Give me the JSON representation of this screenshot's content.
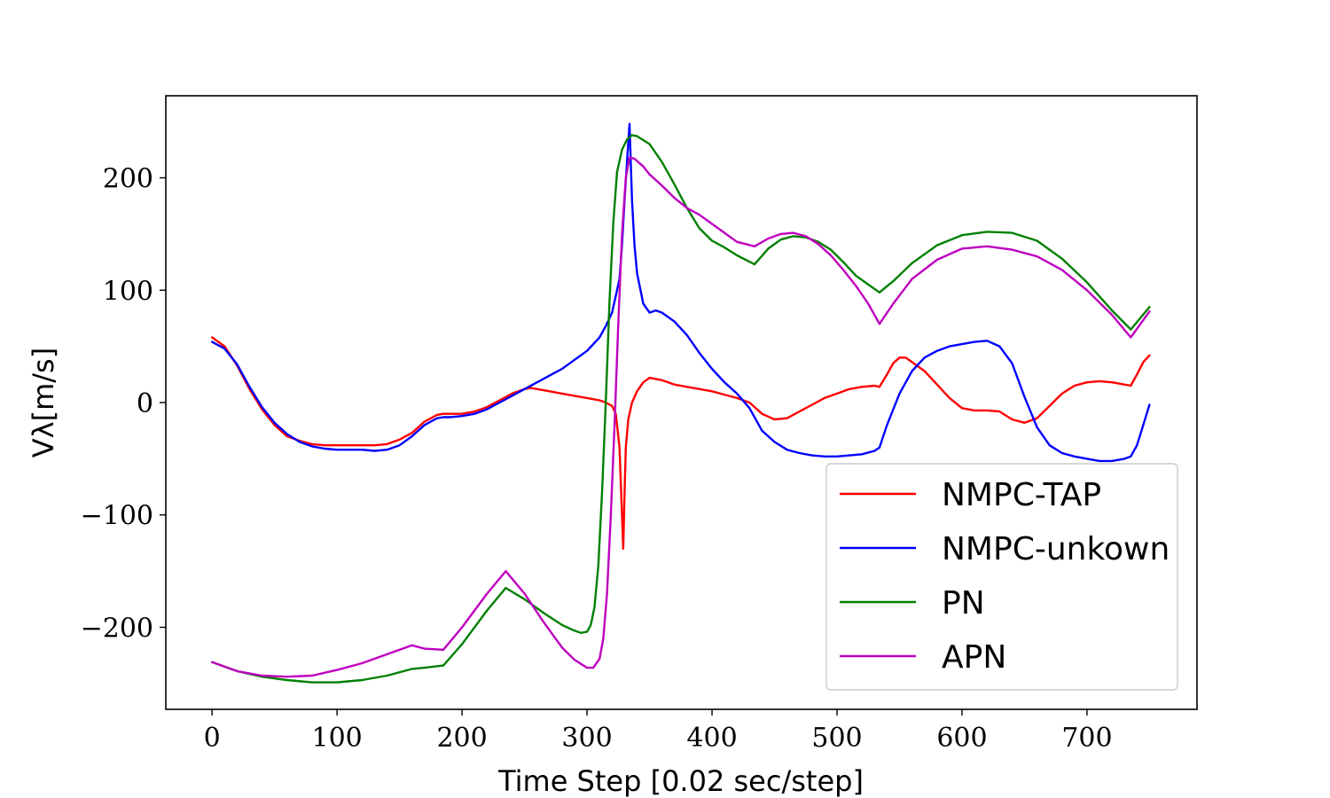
{
  "chart_data": {
    "type": "line",
    "xlabel": "Time Step [0.02 sec/step]",
    "ylabel": "Vλ[m/s]",
    "xlim": [
      -37,
      788
    ],
    "ylim": [
      -273,
      273
    ],
    "xticks": [
      0,
      100,
      200,
      300,
      400,
      500,
      600,
      700
    ],
    "yticks": [
      -200,
      -100,
      0,
      100,
      200
    ],
    "ytick_labels": [
      "−200",
      "−100",
      "0",
      "100",
      "200"
    ],
    "grid": false,
    "legend_position": "lower-right",
    "series": [
      {
        "name": "NMPC-TAP",
        "color": "#ff0000",
        "x": [
          0,
          10,
          20,
          30,
          40,
          50,
          60,
          70,
          80,
          90,
          100,
          110,
          120,
          130,
          140,
          150,
          160,
          170,
          180,
          185,
          190,
          200,
          210,
          220,
          230,
          240,
          250,
          255,
          260,
          270,
          280,
          290,
          300,
          310,
          315,
          320,
          323,
          326,
          328,
          329,
          330,
          331,
          333,
          336,
          340,
          345,
          350,
          355,
          360,
          370,
          380,
          390,
          400,
          410,
          420,
          430,
          440,
          450,
          460,
          470,
          480,
          490,
          500,
          510,
          520,
          530,
          534,
          540,
          545,
          550,
          555,
          560,
          570,
          580,
          590,
          600,
          610,
          620,
          630,
          640,
          650,
          660,
          670,
          680,
          690,
          700,
          710,
          720,
          730,
          735,
          740,
          745,
          750
        ],
        "y": [
          58,
          50,
          33,
          12,
          -6,
          -20,
          -30,
          -34,
          -37,
          -38,
          -38,
          -38,
          -38,
          -38,
          -37,
          -33,
          -27,
          -17,
          -11,
          -10,
          -10,
          -10,
          -8,
          -4,
          2,
          8,
          12,
          13,
          12,
          10,
          8,
          6,
          4,
          2,
          0,
          -3,
          -10,
          -40,
          -100,
          -130,
          -80,
          -40,
          -15,
          0,
          10,
          18,
          22,
          21,
          20,
          16,
          14,
          12,
          10,
          7,
          4,
          0,
          -10,
          -15,
          -14,
          -8,
          -2,
          4,
          8,
          12,
          14,
          15,
          14,
          25,
          35,
          40,
          40,
          36,
          28,
          16,
          4,
          -5,
          -7,
          -7,
          -8,
          -15,
          -18,
          -14,
          -3,
          8,
          15,
          18,
          19,
          18,
          16,
          15,
          25,
          36,
          42
        ]
      },
      {
        "name": "NMPC-unkown",
        "color": "#0000ff",
        "x": [
          0,
          10,
          20,
          30,
          40,
          50,
          60,
          70,
          80,
          90,
          100,
          110,
          120,
          130,
          140,
          150,
          160,
          170,
          180,
          185,
          190,
          200,
          210,
          220,
          230,
          240,
          250,
          260,
          270,
          280,
          290,
          300,
          310,
          315,
          320,
          323,
          326,
          328,
          330,
          332,
          334,
          336,
          338,
          340,
          345,
          350,
          355,
          360,
          370,
          380,
          390,
          400,
          410,
          420,
          430,
          440,
          450,
          460,
          470,
          480,
          490,
          500,
          510,
          520,
          530,
          534,
          540,
          550,
          560,
          570,
          580,
          590,
          600,
          610,
          620,
          630,
          640,
          650,
          660,
          670,
          680,
          690,
          700,
          710,
          720,
          730,
          735,
          740,
          745,
          750
        ],
        "y": [
          54,
          48,
          34,
          14,
          -4,
          -18,
          -28,
          -35,
          -39,
          -41,
          -42,
          -42,
          -42,
          -43,
          -42,
          -38,
          -30,
          -20,
          -14,
          -13,
          -13,
          -12,
          -10,
          -6,
          0,
          6,
          12,
          18,
          24,
          30,
          38,
          46,
          58,
          68,
          80,
          95,
          110,
          140,
          180,
          215,
          248,
          180,
          140,
          115,
          88,
          80,
          82,
          80,
          72,
          60,
          44,
          30,
          18,
          8,
          -5,
          -25,
          -35,
          -42,
          -45,
          -47,
          -48,
          -48,
          -47,
          -46,
          -43,
          -40,
          -20,
          8,
          28,
          40,
          46,
          50,
          52,
          54,
          55,
          50,
          35,
          5,
          -22,
          -38,
          -45,
          -48,
          -50,
          -52,
          -52,
          -50,
          -48,
          -38,
          -20,
          -2
        ]
      },
      {
        "name": "PN",
        "color": "#008000",
        "x": [
          0,
          20,
          40,
          60,
          80,
          100,
          120,
          140,
          160,
          170,
          185,
          200,
          220,
          235,
          250,
          265,
          280,
          290,
          295,
          300,
          303,
          306,
          309,
          312,
          315,
          318,
          321,
          324,
          328,
          332,
          336,
          340,
          350,
          360,
          370,
          380,
          390,
          400,
          410,
          420,
          434,
          445,
          455,
          465,
          475,
          485,
          495,
          505,
          515,
          525,
          534,
          545,
          560,
          580,
          600,
          620,
          640,
          660,
          680,
          700,
          720,
          735,
          750
        ],
        "y": [
          -231,
          -239,
          -244,
          -247,
          -249,
          -249,
          -247,
          -243,
          -237,
          -236,
          -234,
          -215,
          -185,
          -165,
          -175,
          -187,
          -198,
          -203,
          -205,
          -204,
          -198,
          -182,
          -145,
          -80,
          0,
          90,
          160,
          205,
          225,
          234,
          238,
          237,
          230,
          214,
          194,
          173,
          155,
          144,
          138,
          131,
          123,
          137,
          145,
          148,
          147,
          143,
          136,
          125,
          113,
          105,
          98,
          108,
          124,
          140,
          149,
          152,
          151,
          144,
          128,
          107,
          82,
          65,
          85
        ]
      },
      {
        "name": "APN",
        "color": "#bf00bf",
        "x": [
          0,
          20,
          40,
          60,
          80,
          100,
          120,
          140,
          160,
          170,
          185,
          200,
          220,
          235,
          250,
          265,
          280,
          290,
          300,
          305,
          310,
          313,
          316,
          319,
          322,
          325,
          328,
          331,
          334,
          338,
          345,
          350,
          360,
          370,
          380,
          390,
          400,
          410,
          420,
          434,
          445,
          455,
          465,
          475,
          485,
          495,
          505,
          515,
          525,
          534,
          545,
          560,
          580,
          600,
          620,
          640,
          660,
          680,
          700,
          720,
          735,
          750
        ],
        "y": [
          -231,
          -239,
          -243,
          -244,
          -243,
          -238,
          -232,
          -224,
          -216,
          -219,
          -220,
          -200,
          -170,
          -150,
          -170,
          -195,
          -218,
          -229,
          -236,
          -236,
          -228,
          -210,
          -170,
          -100,
          -20,
          70,
          150,
          200,
          218,
          217,
          210,
          203,
          193,
          182,
          173,
          167,
          159,
          151,
          143,
          139,
          146,
          150,
          151,
          148,
          141,
          131,
          118,
          104,
          88,
          70,
          88,
          110,
          127,
          137,
          139,
          136,
          130,
          118,
          100,
          78,
          58,
          81
        ]
      }
    ]
  }
}
